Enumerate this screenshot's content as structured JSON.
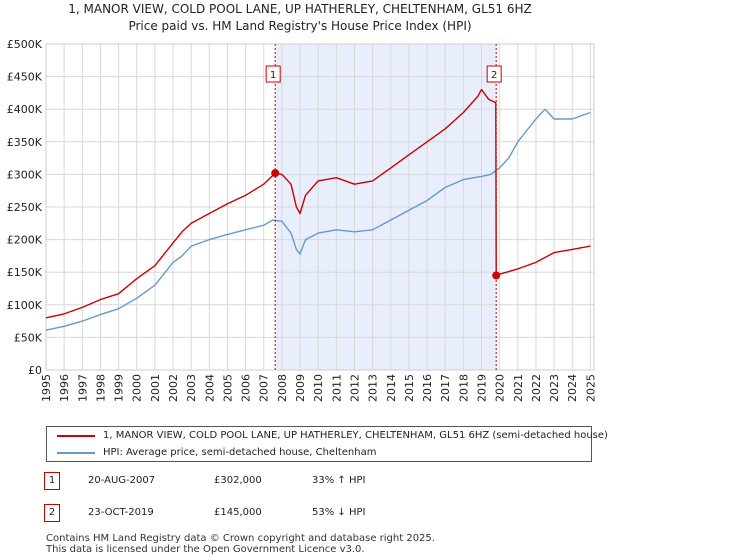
{
  "title_line1": "1, MANOR VIEW, COLD POOL LANE, UP HATHERLEY, CHELTENHAM, GL51 6HZ",
  "title_line2": "Price paid vs. HM Land Registry's House Price Index (HPI)",
  "colors": {
    "property": "#cc0000",
    "hpi": "#6699cc",
    "shade": "#e8eefb",
    "marker_line": "#cc0000"
  },
  "chart_data": {
    "type": "line",
    "y_tick_labels": [
      "£0",
      "£50K",
      "£100K",
      "£150K",
      "£200K",
      "£250K",
      "£300K",
      "£350K",
      "£400K",
      "£450K",
      "£500K"
    ],
    "y_ticks": [
      0,
      50000,
      100000,
      150000,
      200000,
      250000,
      300000,
      350000,
      400000,
      450000,
      500000
    ],
    "ylim": [
      0,
      500000
    ],
    "x_tick_labels": [
      "1995",
      "1996",
      "1997",
      "1998",
      "1999",
      "2000",
      "2001",
      "2002",
      "2003",
      "2004",
      "2005",
      "2006",
      "2007",
      "2008",
      "2009",
      "2010",
      "2011",
      "2012",
      "2013",
      "2014",
      "2015",
      "2016",
      "2017",
      "2018",
      "2019",
      "2020",
      "2021",
      "2022",
      "2023",
      "2024",
      "2025"
    ],
    "xlim": [
      1995,
      2025.2
    ],
    "shaded_span": [
      2007.63,
      2019.81
    ],
    "series": [
      {
        "name": "1, MANOR VIEW, COLD POOL LANE, UP HATHERLEY, CHELTENHAM, GL51 6HZ (semi-detached house)",
        "x": [
          1995,
          1996,
          1997,
          1998,
          1999,
          2000,
          2001,
          2002,
          2002.5,
          2003,
          2004,
          2005,
          2006,
          2007,
          2007.63,
          2008,
          2008.5,
          2008.8,
          2009,
          2009.3,
          2010,
          2011,
          2012,
          2013,
          2014,
          2015,
          2016,
          2017,
          2018,
          2018.8,
          2019,
          2019.4,
          2019.79,
          2019.81,
          2020,
          2021,
          2022,
          2023,
          2024,
          2025
        ],
        "y": [
          80000,
          86000,
          96000,
          108000,
          117000,
          140000,
          160000,
          195000,
          212000,
          225000,
          240000,
          255000,
          268000,
          285000,
          302000,
          300000,
          285000,
          250000,
          240000,
          268000,
          290000,
          295000,
          285000,
          290000,
          310000,
          330000,
          350000,
          370000,
          395000,
          420000,
          430000,
          415000,
          410000,
          145000,
          147000,
          155000,
          165000,
          180000,
          185000,
          190000
        ]
      },
      {
        "name": "HPI: Average price, semi-detached house, Cheltenham",
        "x": [
          1995,
          1996,
          1997,
          1998,
          1999,
          2000,
          2001,
          2002,
          2002.5,
          2003,
          2004,
          2005,
          2006,
          2007,
          2007.5,
          2008,
          2008.5,
          2008.8,
          2009,
          2009.3,
          2010,
          2011,
          2012,
          2013,
          2014,
          2015,
          2016,
          2017,
          2018,
          2019,
          2019.5,
          2020,
          2020.5,
          2021,
          2022,
          2022.5,
          2023,
          2024,
          2025
        ],
        "y": [
          61000,
          67000,
          75000,
          85000,
          94000,
          110000,
          130000,
          165000,
          175000,
          190000,
          200000,
          208000,
          215000,
          222000,
          230000,
          228000,
          210000,
          185000,
          178000,
          200000,
          210000,
          215000,
          212000,
          215000,
          230000,
          245000,
          260000,
          280000,
          292000,
          297000,
          300000,
          310000,
          325000,
          350000,
          385000,
          400000,
          385000,
          385000,
          395000
        ]
      }
    ],
    "sales": [
      {
        "label": "1",
        "x": 2007.63,
        "y": 302000,
        "date": "20-AUG-2007",
        "price": "£302,000",
        "hpi_change": "33% ↑ HPI"
      },
      {
        "label": "2",
        "x": 2019.81,
        "y": 145000,
        "date": "23-OCT-2019",
        "price": "£145,000",
        "hpi_change": "53% ↓ HPI"
      }
    ]
  },
  "footer_line1": "Contains HM Land Registry data © Crown copyright and database right 2025.",
  "footer_line2": "This data is licensed under the Open Government Licence v3.0."
}
